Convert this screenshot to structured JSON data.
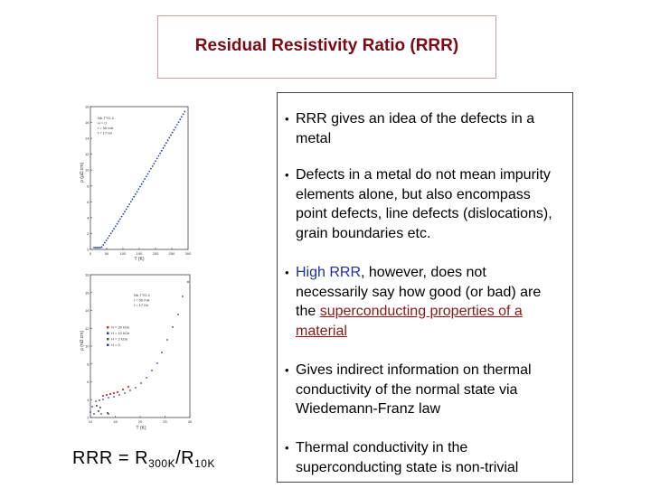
{
  "title": "Residual Resistivity Ratio (RRR)",
  "bullets": [
    {
      "text": "RRR gives an idea of the defects in a metal"
    },
    {
      "text": "Defects in a metal do not mean impurity elements alone, but also encompass point defects, line defects (dislocations), grain boundaries etc."
    },
    {
      "pre": "",
      "highlight": "High RRR",
      "mid": ", however, does not necessarily say how good (or bad) are the ",
      "underline": "superconducting  properties of a material"
    },
    {
      "text": "Gives indirect information on thermal conductivity of the normal state via Wiedemann-Franz law"
    },
    {
      "text": "Thermal conductivity in the superconducting state is non-trivial"
    }
  ],
  "bullet_symbol": "•",
  "formula": {
    "lhs": "RRR = R",
    "sub1": "300K",
    "slash": "/R",
    "sub2": "10K"
  },
  "plot_top": {
    "ylabel": "ρ (μΩ.cm)",
    "xlabel": "T (K)",
    "legend": [
      "Nb-TTO-1",
      "H = 0",
      "I = 50 mA",
      "f = 17 Hz"
    ],
    "yticks": [
      "18",
      "16",
      "14",
      "12",
      "10",
      "8",
      "6",
      "4",
      "2",
      "0"
    ],
    "xticks": [
      "0",
      "50",
      "100",
      "150",
      "200",
      "250",
      "300"
    ]
  },
  "plot_bottom": {
    "ylabel": "ρ (nΩ.cm)",
    "xlabel": "T (K)",
    "legend_top": [
      "Nb-TTO-1",
      "I = 50 mA",
      "f = 17 Hz"
    ],
    "legend": [
      "H = 20 kOe",
      "H = 10 kOe",
      "H = 2 kOe",
      "H = 0"
    ],
    "yticks": [
      "18",
      "16",
      "14",
      "12",
      "10",
      "8",
      "6",
      "4",
      "2"
    ],
    "xticks": [
      "10",
      "15",
      "20",
      "25",
      "30"
    ]
  },
  "colors": {
    "title": "#7a0a14",
    "highlight": "#1f2f9e",
    "underline": "#8a1818",
    "data": "#2a3aa8"
  }
}
